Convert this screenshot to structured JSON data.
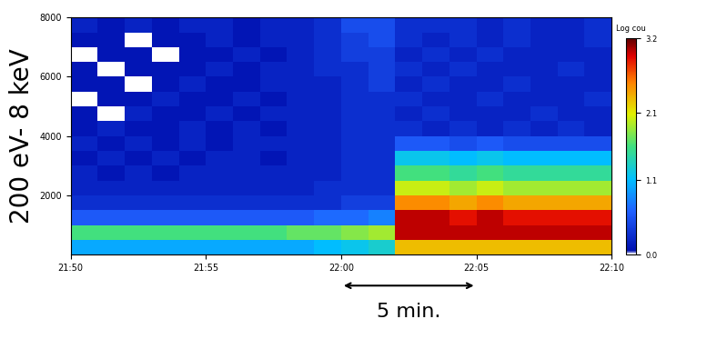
{
  "chart_data": {
    "type": "heatmap",
    "y_label": "200 eV- 8 keV",
    "xlim": [
      1310,
      1330
    ],
    "xticks": [
      {
        "value": 1310,
        "label": "21:50"
      },
      {
        "value": 1315,
        "label": "21:55"
      },
      {
        "value": 1320,
        "label": "22:00"
      },
      {
        "value": 1325,
        "label": "22:05"
      },
      {
        "value": 1330,
        "label": "22:10"
      }
    ],
    "ylim": [
      0,
      8000
    ],
    "yticks": [
      2000,
      4000,
      6000,
      8000
    ],
    "x_bins": [
      1310,
      1311,
      1312,
      1313,
      1314,
      1315,
      1316,
      1317,
      1318,
      1319,
      1320,
      1321,
      1322,
      1323,
      1324,
      1325,
      1326,
      1327,
      1328,
      1329,
      1330
    ],
    "y_bins": [
      0,
      500,
      1000,
      1500,
      2000,
      2500,
      3000,
      3500,
      4000,
      4500,
      5000,
      5500,
      6000,
      6500,
      7000,
      7500,
      8000
    ],
    "cells": [
      [
        1.0,
        1.0,
        1.0,
        1.0,
        1.0,
        1.0,
        1.0,
        1.0,
        1.0,
        1.1,
        1.2,
        1.3,
        2.3,
        2.3,
        2.3,
        2.3,
        2.3,
        2.3,
        2.3,
        2.3
      ],
      [
        1.6,
        1.6,
        1.6,
        1.6,
        1.6,
        1.6,
        1.6,
        1.6,
        1.7,
        1.7,
        1.8,
        1.9,
        3.0,
        3.0,
        3.0,
        3.0,
        3.0,
        3.0,
        3.0,
        3.0
      ],
      [
        0.6,
        0.6,
        0.6,
        0.6,
        0.6,
        0.6,
        0.6,
        0.6,
        0.6,
        0.7,
        0.7,
        0.8,
        3.0,
        3.0,
        2.9,
        3.0,
        2.9,
        2.9,
        2.9,
        2.9
      ],
      [
        0.3,
        0.3,
        0.3,
        0.3,
        0.3,
        0.3,
        0.3,
        0.3,
        0.3,
        0.3,
        0.4,
        0.4,
        2.5,
        2.5,
        2.4,
        2.5,
        2.4,
        2.4,
        2.4,
        2.4
      ],
      [
        0.2,
        0.2,
        0.2,
        0.2,
        0.2,
        0.2,
        0.2,
        0.2,
        0.2,
        0.3,
        0.3,
        0.3,
        2.0,
        2.0,
        1.9,
        2.0,
        1.9,
        1.9,
        1.9,
        1.9
      ],
      [
        0.2,
        0.1,
        0.2,
        0.1,
        0.2,
        0.2,
        0.2,
        0.2,
        0.2,
        0.2,
        0.3,
        0.3,
        1.6,
        1.6,
        1.5,
        1.6,
        1.5,
        1.5,
        1.5,
        1.5
      ],
      [
        0.1,
        0.2,
        0.1,
        0.2,
        0.1,
        0.2,
        0.2,
        0.1,
        0.2,
        0.2,
        0.3,
        0.3,
        1.2,
        1.2,
        1.1,
        1.2,
        1.1,
        1.1,
        1.1,
        1.1
      ],
      [
        0.2,
        0.1,
        0.2,
        0.1,
        0.2,
        0.1,
        0.2,
        0.2,
        0.2,
        0.2,
        0.3,
        0.3,
        0.6,
        0.6,
        0.5,
        0.6,
        0.5,
        0.5,
        0.5,
        0.5
      ],
      [
        0.1,
        0.2,
        0.1,
        0.1,
        0.2,
        0.1,
        0.2,
        0.1,
        0.2,
        0.2,
        0.3,
        0.3,
        0.3,
        0.2,
        0.3,
        0.2,
        0.3,
        0.2,
        0.3,
        0.2
      ],
      [
        0.1,
        0.0,
        0.2,
        0.1,
        0.1,
        0.2,
        0.1,
        0.2,
        0.2,
        0.2,
        0.3,
        0.3,
        0.2,
        0.3,
        0.2,
        0.2,
        0.2,
        0.3,
        0.2,
        0.2
      ],
      [
        0.0,
        0.1,
        0.1,
        0.2,
        0.1,
        0.1,
        0.2,
        0.1,
        0.2,
        0.2,
        0.3,
        0.3,
        0.3,
        0.2,
        0.2,
        0.3,
        0.2,
        0.2,
        0.2,
        0.3
      ],
      [
        0.1,
        0.1,
        0.0,
        0.1,
        0.2,
        0.1,
        0.1,
        0.2,
        0.2,
        0.2,
        0.3,
        0.4,
        0.2,
        0.3,
        0.2,
        0.2,
        0.3,
        0.2,
        0.2,
        0.2
      ],
      [
        0.1,
        0.0,
        0.1,
        0.1,
        0.1,
        0.2,
        0.1,
        0.2,
        0.2,
        0.3,
        0.3,
        0.4,
        0.3,
        0.2,
        0.3,
        0.2,
        0.2,
        0.2,
        0.3,
        0.2
      ],
      [
        0.0,
        0.1,
        0.1,
        0.0,
        0.1,
        0.1,
        0.2,
        0.1,
        0.2,
        0.3,
        0.4,
        0.4,
        0.2,
        0.3,
        0.2,
        0.3,
        0.2,
        0.2,
        0.2,
        0.2
      ],
      [
        0.1,
        0.1,
        0.0,
        0.1,
        0.1,
        0.2,
        0.1,
        0.2,
        0.2,
        0.3,
        0.4,
        0.5,
        0.3,
        0.2,
        0.3,
        0.2,
        0.3,
        0.2,
        0.2,
        0.3
      ],
      [
        0.2,
        0.1,
        0.2,
        0.1,
        0.2,
        0.2,
        0.1,
        0.2,
        0.2,
        0.3,
        0.5,
        0.5,
        0.3,
        0.3,
        0.3,
        0.2,
        0.3,
        0.2,
        0.2,
        0.3
      ]
    ],
    "colorbar_label": "Log cou",
    "colorbar_range": [
      0.0,
      3.2
    ],
    "colorbar_ticks": [
      0.0,
      1.1,
      2.1,
      3.2
    ],
    "annotations": [
      {
        "text": "5 min.",
        "x": [
          1320,
          1325
        ]
      }
    ]
  }
}
